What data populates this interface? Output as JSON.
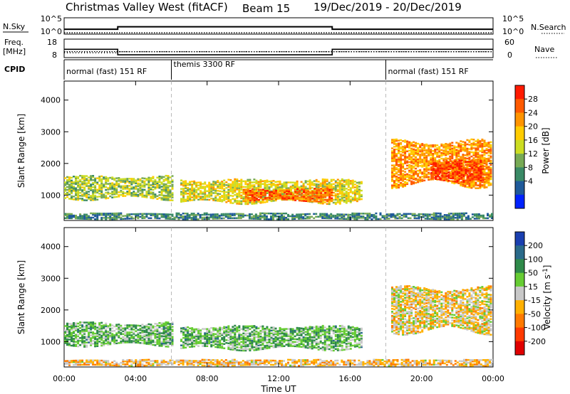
{
  "header": {
    "title": "Christmas Valley West (fitACF)",
    "beam": "Beam 15",
    "date_range": "19/Dec/2019 - 20/Dec/2019"
  },
  "meta_panels": {
    "nsky": {
      "label": "N.Sky",
      "ticks_left": [
        "10^5",
        "10^0"
      ],
      "ticks_right": [
        "10^5",
        "10^0"
      ],
      "right_label": "N.Search"
    },
    "freq": {
      "label_lines": [
        "Freq.",
        "[MHz]"
      ],
      "ticks_left": [
        "18",
        "8"
      ],
      "ticks_right": [
        "60",
        "0"
      ],
      "right_label": "Nave"
    },
    "cpid": {
      "label": "CPID"
    }
  },
  "colors": {
    "cpid_divider": "#aaaaaa",
    "no_data": "#ffffff"
  },
  "chart_data": [
    {
      "type": "line",
      "name": "nsky",
      "xlabel": "",
      "ylabel": "N.Sky",
      "x_range_hours": [
        0,
        24
      ],
      "series": [
        {
          "style": "solid",
          "x": [
            0,
            3,
            3,
            15,
            15,
            24
          ],
          "y": [
            0.3,
            0.3,
            0.45,
            0.45,
            0.3,
            0.3
          ]
        },
        {
          "style": "dotted",
          "x": [
            0,
            24
          ],
          "y": [
            0.08,
            0.08
          ]
        }
      ]
    },
    {
      "type": "line",
      "name": "frequency",
      "ylabel": "Freq. [MHz]",
      "ylim": [
        8,
        18
      ],
      "y2lim": [
        0,
        60
      ],
      "x_range_hours": [
        0,
        24
      ],
      "series": [
        {
          "style": "solid",
          "x": [
            0,
            3,
            3,
            15,
            15,
            24
          ],
          "y": [
            12.5,
            12.5,
            9.5,
            9.5,
            12.5,
            12.5
          ]
        },
        {
          "style": "dotted",
          "x": [
            0,
            24
          ],
          "y": [
            11.2,
            11.2
          ]
        },
        {
          "style": "dotted-scattered",
          "x": [
            0,
            3,
            3,
            24
          ],
          "y": [
            10.6,
            10.6,
            11.2,
            11.2
          ]
        }
      ]
    },
    {
      "type": "table",
      "name": "cpid",
      "segments": [
        {
          "label": "normal (fast) 151 RF",
          "start": 0,
          "end": 6
        },
        {
          "label": "themis 3300 RF",
          "start": 6,
          "end": 18
        },
        {
          "label": "normal (fast) 151 RF",
          "start": 18,
          "end": 24
        }
      ]
    },
    {
      "type": "heatmap",
      "name": "power",
      "ylabel": "Slant Range [km]",
      "ylim": [
        200,
        4600
      ],
      "yticks": [
        1000,
        2000,
        3000,
        4000
      ],
      "x_range_hours": [
        0,
        24
      ],
      "colorbar": {
        "label": "Power [dB]",
        "ticks": [
          "28",
          "24",
          "20",
          "16",
          "12",
          "8",
          "4"
        ],
        "colors": [
          "#ff1a00",
          "#ff5a00",
          "#ff9400",
          "#ffcc00",
          "#ccdd22",
          "#77aa55",
          "#3a8a66",
          "#1f5a9a",
          "#0022ff"
        ]
      },
      "regions": [
        {
          "t0": 0.0,
          "t1": 6.1,
          "r0": 820,
          "r1": 1600,
          "level": 0.45
        },
        {
          "t0": 6.5,
          "t1": 16.6,
          "r0": 700,
          "r1": 1500,
          "level": 0.55
        },
        {
          "t0": 10.0,
          "t1": 15.0,
          "r0": 780,
          "r1": 1200,
          "level": 0.85
        },
        {
          "t0": 18.3,
          "t1": 23.9,
          "r0": 1200,
          "r1": 2750,
          "level": 0.75
        },
        {
          "t0": 20.5,
          "t1": 23.5,
          "r0": 1400,
          "r1": 2100,
          "level": 0.92
        },
        {
          "t0": 0.0,
          "t1": 24.0,
          "r0": 220,
          "r1": 420,
          "level": 0.25
        }
      ]
    },
    {
      "type": "heatmap",
      "name": "velocity",
      "xlabel": "Time UT",
      "ylabel": "Slant Range [km]",
      "ylim": [
        200,
        4600
      ],
      "yticks": [
        1000,
        2000,
        3000,
        4000
      ],
      "x_range_hours": [
        0,
        24
      ],
      "xticks": [
        "00:00",
        "04:00",
        "08:00",
        "12:00",
        "16:00",
        "20:00",
        "00:00"
      ],
      "colorbar": {
        "label": "Velocity [m s-1]",
        "ticks": [
          "200",
          "100",
          "50",
          "15",
          "-15",
          "-50",
          "-100",
          "-200"
        ],
        "colors": [
          "#1a3fb0",
          "#2a6a8a",
          "#2f8a4a",
          "#66cc33",
          "#c8c8c8",
          "#ffb000",
          "#ff7a00",
          "#ff3a00",
          "#e00000"
        ]
      },
      "regions": [
        {
          "t0": 0.0,
          "t1": 6.1,
          "r0": 820,
          "r1": 1600,
          "level": 0.65
        },
        {
          "t0": 6.5,
          "t1": 16.6,
          "r0": 700,
          "r1": 1500,
          "level": 0.65
        },
        {
          "t0": 18.3,
          "t1": 23.9,
          "r0": 1200,
          "r1": 2750,
          "level": 0.45
        },
        {
          "t0": 0.0,
          "t1": 24.0,
          "r0": 220,
          "r1": 420,
          "level": 0.4
        }
      ]
    }
  ]
}
